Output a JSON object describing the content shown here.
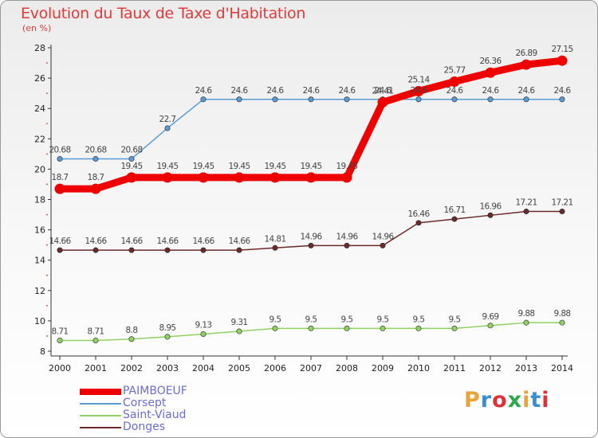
{
  "title": "Evolution du Taux de Taxe d'Habitation",
  "unit_label": "(en %)",
  "logo_text": "Proxiti",
  "logo_colors": [
    "#e8a33b",
    "#3a8fd4",
    "#e0303a",
    "#2fa84a",
    "#e8a33b",
    "#3a8fd4",
    "#e0303a"
  ],
  "chart_data": {
    "type": "line",
    "title": "Evolution du Taux de Taxe d'Habitation",
    "ylabel": "(en %)",
    "xlabel": "",
    "x": [
      "2000",
      "2001",
      "2002",
      "2003",
      "2004",
      "2005",
      "2006",
      "2007",
      "2008",
      "2009",
      "2010",
      "2011",
      "2012",
      "2013",
      "2014"
    ],
    "ylim": [
      8,
      28
    ],
    "yticks": [
      "8",
      "10",
      "12",
      "14",
      "16",
      "18",
      "20",
      "22",
      "24",
      "26",
      "28"
    ],
    "grid": false,
    "legend_position": "bottom-left",
    "series": [
      {
        "name": "PAIMBOEUF",
        "color": "#ee0000",
        "values": [
          18.7,
          18.7,
          19.45,
          19.45,
          19.45,
          19.45,
          19.45,
          19.45,
          19.45,
          24.41,
          25.14,
          25.77,
          26.36,
          26.89,
          27.15
        ],
        "labels": [
          "18.7",
          "18.7",
          "19.45",
          "19.45",
          "19.45",
          "19.45",
          "19.45",
          "19.45",
          "19.45",
          "24.41",
          "25.14",
          "25.77",
          "26.36",
          "26.89",
          "27.15"
        ]
      },
      {
        "name": "Corsept",
        "color": "#5a9bd5",
        "values": [
          20.68,
          20.68,
          20.68,
          22.7,
          24.6,
          24.6,
          24.6,
          24.6,
          24.6,
          24.6,
          24.6,
          24.6,
          24.6,
          24.6,
          24.6
        ],
        "labels": [
          "20.68",
          "20.68",
          "20.68",
          "22.7",
          "24.6",
          "24.6",
          "24.6",
          "24.6",
          "24.6",
          "24.6",
          "24.6",
          "24.6",
          "24.6",
          "24.6",
          "24.6"
        ]
      },
      {
        "name": "Saint-Viaud",
        "color": "#8fd264",
        "values": [
          8.71,
          8.71,
          8.8,
          8.95,
          9.13,
          9.31,
          9.5,
          9.5,
          9.5,
          9.5,
          9.5,
          9.5,
          9.69,
          9.88,
          9.88
        ],
        "labels": [
          "8.71",
          "8.71",
          "8.8",
          "8.95",
          "9.13",
          "9.31",
          "9.5",
          "9.5",
          "9.5",
          "9.5",
          "9.5",
          "9.5",
          "9.69",
          "9.88",
          "9.88"
        ]
      },
      {
        "name": "Donges",
        "color": "#6b2a2a",
        "values": [
          14.66,
          14.66,
          14.66,
          14.66,
          14.66,
          14.66,
          14.81,
          14.96,
          14.96,
          14.96,
          16.46,
          16.71,
          16.96,
          17.21,
          17.21
        ],
        "labels": [
          "14.66",
          "14.66",
          "14.66",
          "14.66",
          "14.66",
          "14.66",
          "14.81",
          "14.96",
          "14.96",
          "14.96",
          "16.46",
          "16.71",
          "16.96",
          "17.21",
          "17.21"
        ]
      }
    ]
  }
}
